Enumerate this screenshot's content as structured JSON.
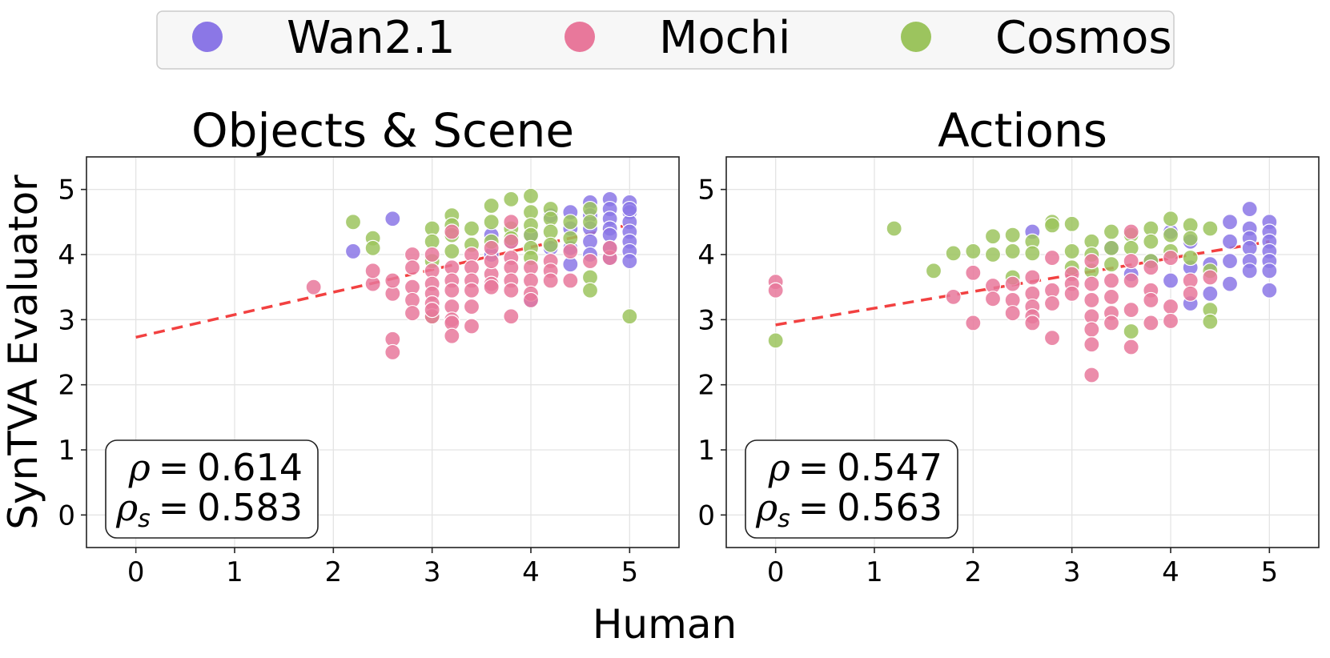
{
  "figure": {
    "shared_xlabel": "Human",
    "shared_ylabel": "SynTVA Evaluator"
  },
  "legend": {
    "entries": [
      {
        "label": "Wan2.1",
        "color": "#8b77e6"
      },
      {
        "label": "Mochi",
        "color": "#e8789b"
      },
      {
        "label": "Cosmos",
        "color": "#9cc45e"
      }
    ]
  },
  "colors": {
    "fit_line": "#f24141",
    "grid": "#e4e4e4",
    "axis": "#222222"
  },
  "chart_data": [
    {
      "type": "scatter",
      "title": "Objects & Scene",
      "xlabel": "Human",
      "ylabel": "SynTVA Evaluator",
      "xlim": [
        -0.5,
        5.5
      ],
      "ylim": [
        -0.5,
        5.5
      ],
      "xticks": [
        "0",
        "1",
        "2",
        "3",
        "4",
        "5"
      ],
      "yticks": [
        "0",
        "1",
        "2",
        "3",
        "4",
        "5"
      ],
      "grid": true,
      "fit_line": {
        "x": [
          0,
          5
        ],
        "y": [
          2.73,
          4.46
        ]
      },
      "annotation": {
        "rho": "0.614",
        "rho_s": "0.583"
      },
      "series": [
        {
          "name": "Wan2.1",
          "x": [
            2.2,
            2.6,
            3.6,
            3.6,
            3.8,
            4.0,
            4.0,
            4.2,
            4.2,
            4.4,
            4.4,
            4.4,
            4.4,
            4.6,
            4.6,
            4.6,
            4.6,
            4.6,
            4.8,
            4.8,
            4.8,
            4.8,
            4.8,
            4.8,
            4.8,
            5.0,
            5.0,
            5.0,
            5.0,
            5.0,
            5.0,
            5.0,
            5.0
          ],
          "y": [
            4.05,
            4.55,
            4.3,
            4.0,
            4.2,
            4.3,
            3.3,
            4.6,
            4.1,
            4.65,
            4.4,
            4.1,
            3.85,
            4.8,
            4.6,
            4.4,
            4.2,
            4.0,
            4.85,
            4.7,
            4.55,
            4.4,
            4.3,
            4.1,
            3.95,
            4.8,
            4.65,
            4.5,
            4.35,
            4.2,
            4.05,
            3.9,
            4.7
          ]
        },
        {
          "name": "Mochi",
          "x": [
            1.8,
            2.4,
            2.4,
            2.6,
            2.6,
            2.6,
            2.6,
            2.8,
            2.8,
            2.8,
            2.8,
            2.8,
            3.0,
            3.0,
            3.0,
            3.0,
            3.0,
            3.0,
            3.0,
            3.2,
            3.2,
            3.2,
            3.2,
            3.2,
            3.2,
            3.2,
            3.2,
            3.4,
            3.4,
            3.4,
            3.4,
            3.4,
            3.4,
            3.6,
            3.6,
            3.6,
            3.6,
            3.6,
            3.8,
            3.8,
            3.8,
            3.8,
            3.8,
            3.8,
            3.8,
            4.0,
            4.0,
            4.0,
            4.0,
            4.2,
            4.2,
            4.2,
            4.4,
            4.4,
            4.6,
            4.8,
            4.8
          ],
          "y": [
            3.5,
            3.55,
            3.75,
            3.4,
            3.6,
            2.7,
            2.5,
            4.0,
            3.8,
            3.5,
            3.3,
            3.1,
            4.0,
            3.75,
            3.55,
            3.4,
            3.25,
            3.05,
            3.15,
            4.35,
            3.8,
            3.6,
            3.45,
            3.2,
            3.0,
            2.95,
            2.75,
            4.0,
            3.8,
            3.6,
            3.45,
            2.9,
            3.2,
            3.7,
            3.55,
            3.9,
            4.1,
            3.5,
            4.5,
            4.2,
            3.95,
            3.8,
            3.6,
            3.45,
            3.05,
            3.8,
            3.6,
            3.4,
            3.3,
            3.9,
            3.75,
            3.6,
            4.05,
            3.6,
            3.9,
            3.95,
            4.1
          ]
        },
        {
          "name": "Cosmos",
          "x": [
            2.2,
            2.4,
            2.4,
            3.0,
            3.0,
            3.0,
            3.0,
            3.2,
            3.2,
            3.2,
            3.2,
            3.4,
            3.4,
            3.6,
            3.6,
            3.6,
            3.8,
            3.8,
            3.8,
            4.0,
            4.0,
            4.0,
            4.0,
            4.0,
            4.0,
            4.2,
            4.2,
            4.2,
            4.2,
            4.4,
            4.4,
            4.6,
            4.6,
            4.6,
            4.6,
            5.0
          ],
          "y": [
            4.5,
            4.25,
            4.1,
            4.4,
            4.2,
            3.05,
            3.9,
            4.6,
            4.45,
            4.3,
            4.05,
            4.4,
            4.15,
            4.75,
            4.5,
            4.2,
            4.85,
            4.4,
            4.25,
            4.9,
            4.65,
            4.45,
            4.3,
            4.1,
            3.95,
            4.7,
            4.55,
            4.35,
            4.15,
            4.5,
            4.25,
            4.7,
            4.5,
            3.65,
            3.45,
            3.05
          ]
        }
      ]
    },
    {
      "type": "scatter",
      "title": "Actions",
      "xlabel": "Human",
      "ylabel": "SynTVA Evaluator",
      "xlim": [
        -0.5,
        5.5
      ],
      "ylim": [
        -0.5,
        5.5
      ],
      "xticks": [
        "0",
        "1",
        "2",
        "3",
        "4",
        "5"
      ],
      "yticks": [
        "0",
        "1",
        "2",
        "3",
        "4",
        "5"
      ],
      "grid": true,
      "fit_line": {
        "x": [
          0,
          5
        ],
        "y": [
          2.92,
          4.2
        ]
      },
      "annotation": {
        "rho": "0.547",
        "rho_s": "0.563"
      },
      "series": [
        {
          "name": "Wan2.1",
          "x": [
            2.6,
            3.4,
            3.6,
            3.8,
            4.0,
            4.0,
            4.2,
            4.2,
            4.2,
            4.4,
            4.4,
            4.6,
            4.6,
            4.6,
            4.6,
            4.8,
            4.8,
            4.8,
            4.8,
            4.8,
            4.8,
            5.0,
            5.0,
            5.0,
            5.0,
            5.0,
            5.0,
            5.0
          ],
          "y": [
            4.35,
            4.1,
            3.7,
            3.9,
            4.35,
            3.6,
            4.2,
            3.8,
            3.25,
            3.85,
            3.4,
            4.5,
            4.2,
            3.9,
            3.55,
            4.7,
            4.4,
            4.25,
            4.1,
            3.9,
            3.75,
            4.5,
            4.35,
            4.2,
            4.05,
            3.9,
            3.75,
            3.45
          ]
        },
        {
          "name": "Mochi",
          "x": [
            0.0,
            0.0,
            1.8,
            2.0,
            2.0,
            2.2,
            2.2,
            2.4,
            2.4,
            2.4,
            2.6,
            2.6,
            2.6,
            2.6,
            2.6,
            2.8,
            2.8,
            2.8,
            2.8,
            3.0,
            3.0,
            3.0,
            3.2,
            3.2,
            3.2,
            3.2,
            3.2,
            3.2,
            3.4,
            3.4,
            3.4,
            3.4,
            3.6,
            3.6,
            3.6,
            3.6,
            3.6,
            3.8,
            3.8,
            3.8,
            3.8,
            4.0,
            4.0,
            4.0,
            4.2,
            4.2,
            4.4
          ],
          "y": [
            3.58,
            3.45,
            3.35,
            3.72,
            2.95,
            3.52,
            3.32,
            3.55,
            3.3,
            3.1,
            3.65,
            3.4,
            3.2,
            3.05,
            2.95,
            3.95,
            3.45,
            3.25,
            2.72,
            3.7,
            3.55,
            3.4,
            3.9,
            3.55,
            3.3,
            3.05,
            2.85,
            2.62,
            3.6,
            3.35,
            3.1,
            2.95,
            4.35,
            3.9,
            3.6,
            3.15,
            2.58,
            3.8,
            3.45,
            3.3,
            2.95,
            3.95,
            3.2,
            2.98,
            3.6,
            3.4,
            3.65
          ],
          "extra": {
            "x": [
              3.2
            ],
            "y": [
              2.15
            ]
          }
        },
        {
          "name": "Cosmos",
          "x": [
            0.0,
            1.2,
            1.6,
            1.8,
            2.0,
            2.2,
            2.2,
            2.4,
            2.4,
            2.4,
            2.6,
            2.6,
            2.8,
            2.8,
            3.0,
            3.0,
            3.0,
            3.2,
            3.2,
            3.2,
            3.4,
            3.4,
            3.4,
            3.6,
            3.6,
            3.6,
            3.8,
            3.8,
            3.8,
            4.0,
            4.0,
            4.0,
            4.2,
            4.2,
            4.2,
            4.4,
            4.4,
            4.4,
            4.4
          ],
          "y": [
            2.68,
            4.4,
            3.75,
            4.02,
            4.05,
            4.28,
            4.0,
            4.3,
            4.05,
            3.65,
            4.2,
            4.02,
            4.5,
            4.45,
            4.47,
            4.05,
            3.8,
            4.2,
            4.0,
            3.75,
            4.35,
            4.1,
            3.85,
            4.3,
            4.1,
            2.82,
            4.4,
            4.2,
            3.9,
            4.55,
            4.3,
            4.05,
            4.45,
            4.25,
            3.95,
            4.4,
            3.75,
            3.15,
            2.97
          ]
        }
      ]
    }
  ]
}
